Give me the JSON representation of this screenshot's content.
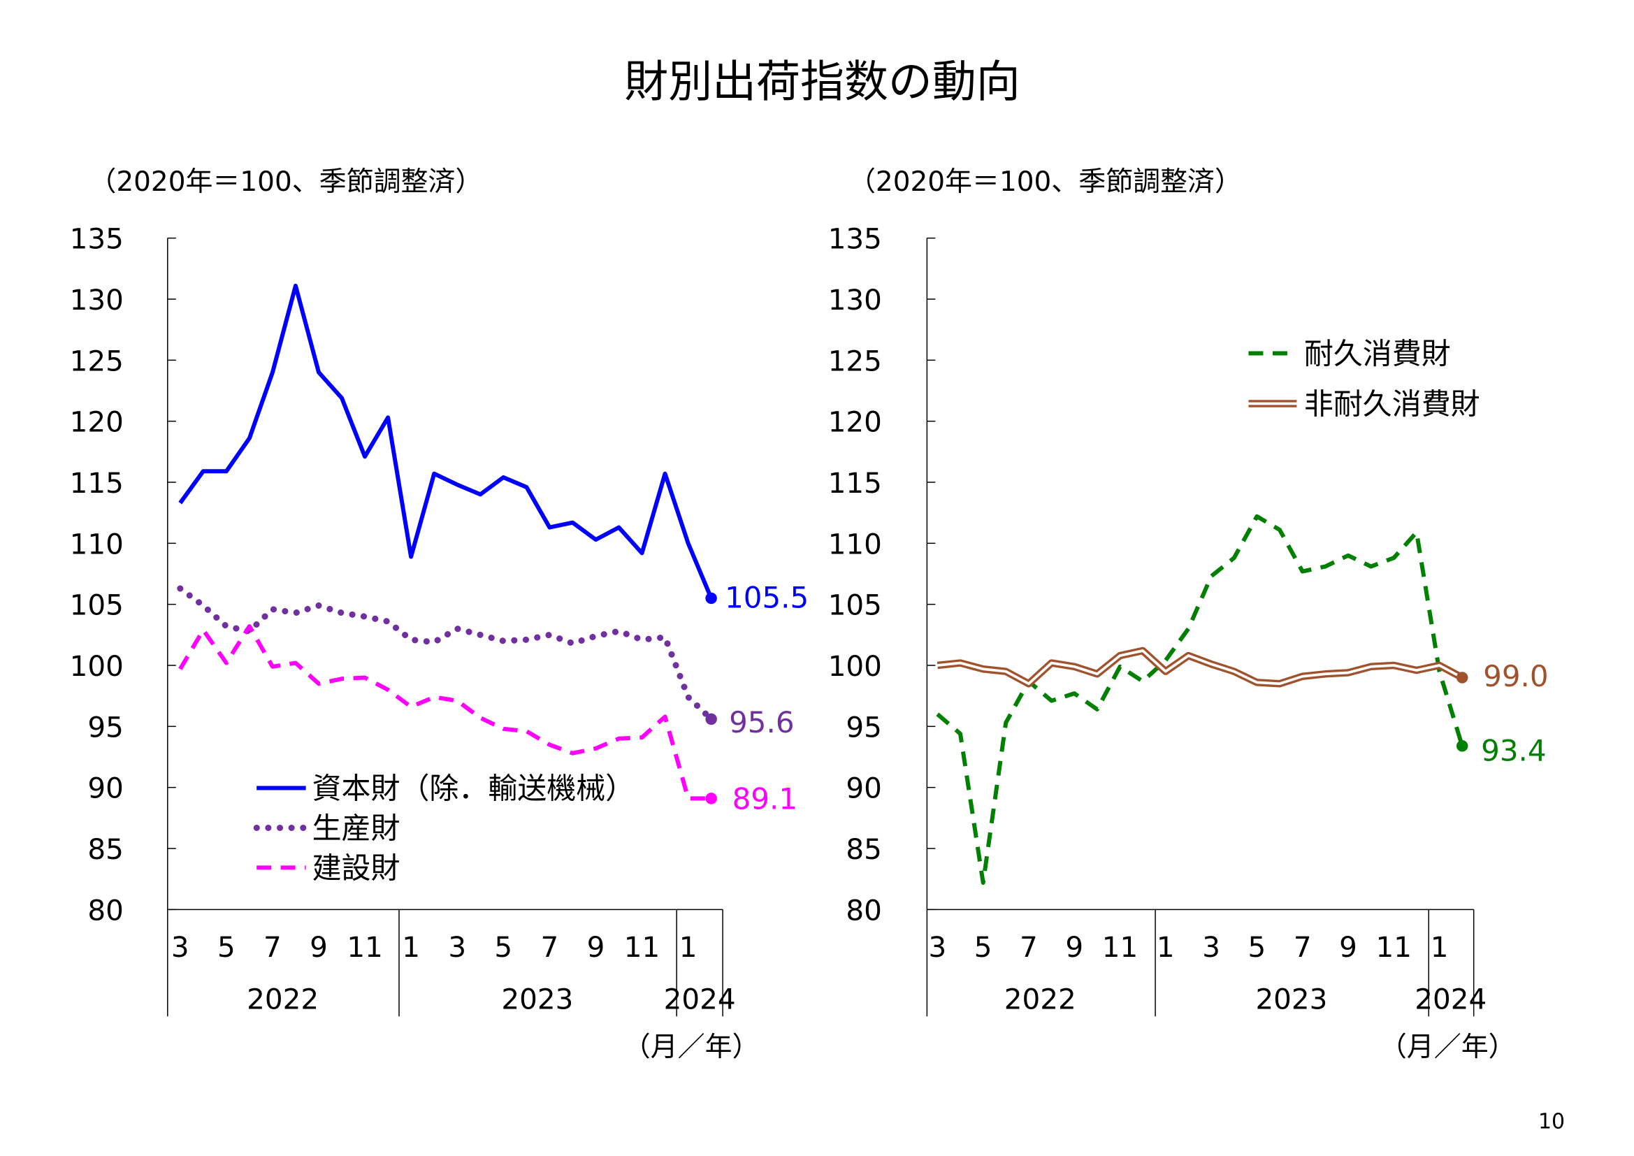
{
  "title": "財別出荷指数の動向",
  "page_number": "10",
  "chart_data": [
    {
      "type": "line",
      "subtitle": "（2020年＝100、季節調整済）",
      "xlabel": "（月／年）",
      "ylim": [
        80,
        135
      ],
      "yticks": [
        "80",
        "85",
        "90",
        "95",
        "100",
        "105",
        "110",
        "115",
        "120",
        "125",
        "130",
        "135"
      ],
      "month_labels": [
        "3",
        "5",
        "7",
        "9",
        "11",
        "1",
        "3",
        "5",
        "7",
        "9",
        "11",
        "1"
      ],
      "year_labels": [
        "2022",
        "2023",
        "2024"
      ],
      "x": [
        "2022-03",
        "2022-04",
        "2022-05",
        "2022-06",
        "2022-07",
        "2022-08",
        "2022-09",
        "2022-10",
        "2022-11",
        "2022-12",
        "2023-01",
        "2023-02",
        "2023-03",
        "2023-04",
        "2023-05",
        "2023-06",
        "2023-07",
        "2023-08",
        "2023-09",
        "2023-10",
        "2023-11",
        "2023-12",
        "2024-01",
        "2024-02"
      ],
      "series": [
        {
          "name": "資本財（除．輸送機械）",
          "color": "#0000ff",
          "style": "solid",
          "end_label": "105.5",
          "values": [
            113.3,
            115.9,
            115.9,
            118.6,
            124.0,
            131.1,
            124.0,
            121.9,
            117.1,
            120.3,
            108.9,
            115.7,
            114.8,
            114.0,
            115.4,
            114.6,
            111.3,
            111.7,
            110.3,
            111.3,
            109.2,
            115.7,
            110.0,
            105.5
          ]
        },
        {
          "name": "生産財",
          "color": "#7030a0",
          "style": "dotted",
          "end_label": "95.6",
          "values": [
            106.3,
            104.9,
            103.2,
            102.8,
            104.6,
            104.3,
            104.9,
            104.3,
            104.0,
            103.6,
            102.1,
            101.9,
            103.0,
            102.5,
            102.0,
            102.1,
            102.5,
            101.8,
            102.4,
            102.8,
            102.1,
            102.3,
            97.4,
            95.6
          ]
        },
        {
          "name": "建設財",
          "color": "#ff00ff",
          "style": "dashed",
          "end_label": "89.1",
          "values": [
            99.7,
            102.9,
            100.2,
            103.2,
            99.9,
            100.2,
            98.5,
            98.9,
            99.0,
            98.0,
            96.6,
            97.4,
            97.1,
            95.7,
            94.8,
            94.6,
            93.5,
            92.8,
            93.2,
            94.0,
            94.1,
            95.8,
            89.1,
            89.1
          ]
        }
      ]
    },
    {
      "type": "line",
      "subtitle": "（2020年＝100、季節調整済）",
      "xlabel": "（月／年）",
      "ylim": [
        80,
        135
      ],
      "yticks": [
        "80",
        "85",
        "90",
        "95",
        "100",
        "105",
        "110",
        "115",
        "120",
        "125",
        "130",
        "135"
      ],
      "month_labels": [
        "3",
        "5",
        "7",
        "9",
        "11",
        "1",
        "3",
        "5",
        "7",
        "9",
        "11",
        "1"
      ],
      "year_labels": [
        "2022",
        "2023",
        "2024"
      ],
      "x": [
        "2022-03",
        "2022-04",
        "2022-05",
        "2022-06",
        "2022-07",
        "2022-08",
        "2022-09",
        "2022-10",
        "2022-11",
        "2022-12",
        "2023-01",
        "2023-02",
        "2023-03",
        "2023-04",
        "2023-05",
        "2023-06",
        "2023-07",
        "2023-08",
        "2023-09",
        "2023-10",
        "2023-11",
        "2023-12",
        "2024-01",
        "2024-02"
      ],
      "series": [
        {
          "name": "耐久消費財",
          "color": "#008000",
          "style": "dashed",
          "end_label": "93.4",
          "values": [
            96.0,
            94.4,
            82.2,
            95.3,
            98.7,
            97.1,
            97.7,
            96.4,
            99.9,
            98.7,
            100.4,
            103.0,
            107.3,
            108.8,
            112.2,
            111.1,
            107.7,
            108.1,
            109.0,
            108.1,
            108.8,
            110.9,
            99.5,
            93.4
          ]
        },
        {
          "name": "非耐久消費財",
          "color": "#a0522d",
          "style": "double",
          "end_label": "99.0",
          "values": [
            100.0,
            100.2,
            99.7,
            99.5,
            98.5,
            100.2,
            99.9,
            99.3,
            100.8,
            101.2,
            99.5,
            100.8,
            100.1,
            99.5,
            98.6,
            98.5,
            99.1,
            99.3,
            99.4,
            99.9,
            100.0,
            99.6,
            100.0,
            99.0
          ]
        }
      ]
    }
  ]
}
